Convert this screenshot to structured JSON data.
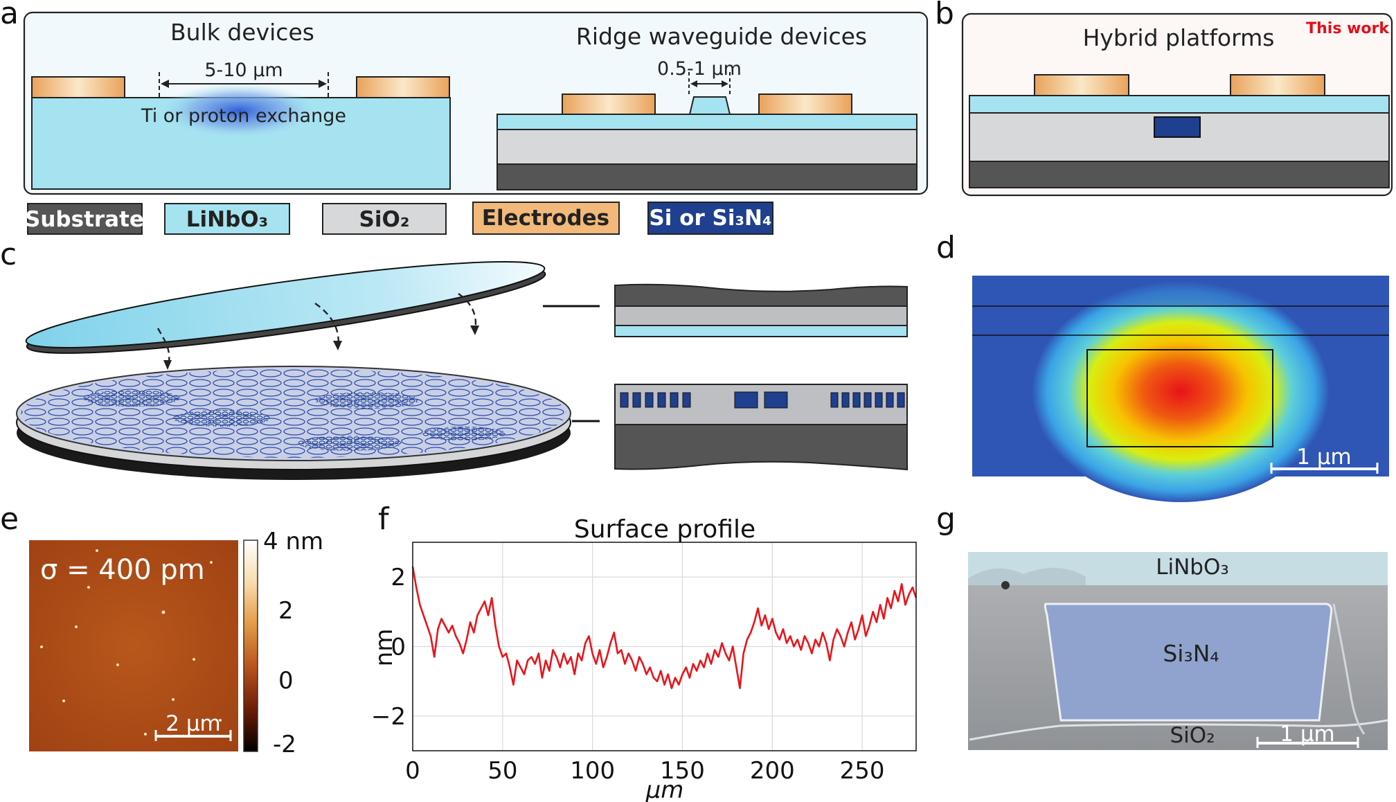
{
  "panels": {
    "a": "a",
    "b": "b",
    "c": "c",
    "d": "d",
    "e": "e",
    "f": "f",
    "g": "g"
  },
  "panel_a": {
    "bulk_title": "Bulk devices",
    "bulk_gap": "5-10 µm",
    "bulk_exchange": "Ti or proton exchange",
    "ridge_title": "Ridge waveguide devices",
    "ridge_gap": "0.5-1 µm"
  },
  "panel_b": {
    "title": "Hybrid platforms",
    "tag": "This work",
    "tag_color": "#e0101a"
  },
  "legend": [
    {
      "label": "Substrate",
      "fill": "#555555",
      "text_color": "#ffffff"
    },
    {
      "label": "LiNbO₃",
      "fill": "#a6e3f0",
      "text_color": "#222222"
    },
    {
      "label": "SiO₂",
      "fill": "#d6d8da",
      "text_color": "#222222"
    },
    {
      "label": "Electrodes",
      "fill": "#f2b97a",
      "text_color": "#222222"
    },
    {
      "label": "Si or Si₃N₄",
      "fill": "#1f3f8f",
      "text_color": "#ffffff"
    }
  ],
  "panel_d": {
    "scalebar": "1 µm"
  },
  "panel_e": {
    "sigma": "σ = 400 pm",
    "scalebar": "2 µm",
    "colorbar_ticks": [
      "4 nm",
      "2",
      "0",
      "-2"
    ]
  },
  "panel_g": {
    "top_label": "LiNbO₃",
    "core_label": "Si₃N₄",
    "bottom_label": "SiO₂",
    "scalebar": "1 µm"
  },
  "chart_data": {
    "type": "line",
    "title": "Surface profile",
    "xlabel": "µm",
    "ylabel": "nm",
    "xlim": [
      0,
      280
    ],
    "ylim": [
      -3,
      3
    ],
    "xticks": [
      0,
      50,
      100,
      150,
      200,
      250
    ],
    "yticks": [
      2,
      0,
      -2
    ],
    "ytick_labels": [
      "2",
      "0",
      "−2"
    ],
    "grid": true,
    "line_color": "#e8141b",
    "series": [
      {
        "x": [
          0,
          2,
          4,
          6,
          8,
          10,
          12,
          14,
          16,
          18,
          20,
          22,
          24,
          26,
          28,
          30,
          32,
          34,
          36,
          38,
          40,
          42,
          44,
          46,
          48,
          50,
          52,
          54,
          56,
          58,
          60,
          62,
          64,
          66,
          68,
          70,
          72,
          74,
          76,
          78,
          80,
          82,
          84,
          86,
          88,
          90,
          92,
          94,
          96,
          98,
          100,
          102,
          104,
          106,
          108,
          110,
          112,
          114,
          116,
          118,
          120,
          122,
          124,
          126,
          128,
          130,
          132,
          134,
          136,
          138,
          140,
          142,
          144,
          146,
          148,
          150,
          152,
          154,
          156,
          158,
          160,
          162,
          164,
          166,
          168,
          170,
          172,
          174,
          176,
          178,
          180,
          182,
          184,
          186,
          188,
          190,
          192,
          194,
          196,
          198,
          200,
          202,
          204,
          206,
          208,
          210,
          212,
          214,
          216,
          218,
          220,
          222,
          224,
          226,
          228,
          230,
          232,
          234,
          236,
          238,
          240,
          242,
          244,
          246,
          248,
          250,
          252,
          254,
          256,
          258,
          260,
          262,
          264,
          266,
          268,
          270,
          272,
          274,
          276,
          278,
          280
        ],
        "values": [
          2.3,
          1.7,
          1.2,
          0.9,
          0.6,
          0.3,
          -0.3,
          0.5,
          0.8,
          0.6,
          0.4,
          0.6,
          0.3,
          0.1,
          -0.2,
          0.2,
          0.7,
          0.4,
          0.9,
          1.1,
          1.3,
          0.9,
          1.4,
          0.6,
          0.0,
          -0.3,
          -0.2,
          -0.6,
          -1.1,
          -0.4,
          -0.6,
          -0.8,
          -0.4,
          -0.3,
          -0.5,
          -0.2,
          -0.9,
          -0.4,
          -0.7,
          -0.1,
          -0.3,
          -0.6,
          -0.2,
          -0.5,
          -0.3,
          -0.8,
          -0.2,
          -0.4,
          0.1,
          0.3,
          -0.2,
          -0.5,
          -0.1,
          -0.6,
          -0.3,
          0.1,
          0.4,
          -0.2,
          -0.1,
          -0.5,
          -0.2,
          -0.4,
          -0.7,
          -0.3,
          -0.5,
          -0.8,
          -0.6,
          -0.9,
          -1.0,
          -0.7,
          -1.1,
          -0.8,
          -1.2,
          -0.9,
          -1.1,
          -0.8,
          -0.6,
          -0.9,
          -0.5,
          -0.7,
          -0.4,
          -0.6,
          -0.2,
          -0.5,
          -0.1,
          -0.3,
          0.1,
          -0.2,
          -0.4,
          0.0,
          -0.6,
          -1.2,
          -0.2,
          0.2,
          0.4,
          0.7,
          1.1,
          0.6,
          0.9,
          0.5,
          0.8,
          0.4,
          0.2,
          0.5,
          0.1,
          0.3,
          0.0,
          0.2,
          -0.1,
          0.3,
          0.1,
          -0.2,
          0.2,
          0.0,
          0.4,
          0.1,
          -0.4,
          0.2,
          0.5,
          0.3,
          0.0,
          0.4,
          0.7,
          0.2,
          0.5,
          0.9,
          0.3,
          0.6,
          1.0,
          0.7,
          1.2,
          0.8,
          1.4,
          1.1,
          1.6,
          1.3,
          1.8,
          1.2,
          1.5,
          1.7,
          1.4
        ]
      }
    ]
  }
}
